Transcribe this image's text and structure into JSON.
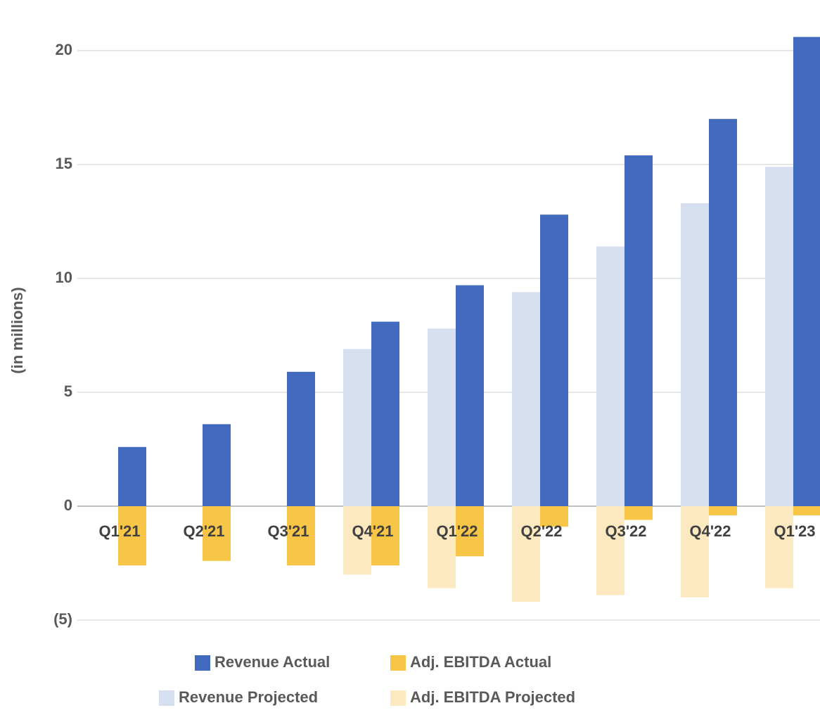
{
  "chart_data": {
    "type": "bar",
    "y_label": "(in millions)",
    "categories": [
      "Q1'21",
      "Q2'21",
      "Q3'21",
      "Q4'21",
      "Q1'22",
      "Q2'22",
      "Q3'22",
      "Q4'22",
      "Q1'23"
    ],
    "series": [
      {
        "name": "Revenue Actual",
        "color": "#4169be",
        "values": [
          2.6,
          3.6,
          5.9,
          8.1,
          9.7,
          12.8,
          15.4,
          17.0,
          20.6
        ]
      },
      {
        "name": "Adj. EBITDA Actual",
        "color": "#f8c646",
        "values": [
          -2.6,
          -2.4,
          -2.6,
          -2.6,
          -2.2,
          -0.9,
          -0.6,
          -0.4,
          -0.4
        ]
      },
      {
        "name": "Revenue Projected",
        "color": "#d6dff0",
        "values": [
          null,
          null,
          null,
          6.9,
          7.8,
          9.4,
          11.4,
          13.3,
          14.9
        ]
      },
      {
        "name": "Adj. EBITDA Projected",
        "color": "#fde9bf",
        "values": [
          null,
          null,
          null,
          -3.0,
          -3.6,
          -4.2,
          -3.9,
          -4.0,
          -3.6
        ]
      }
    ],
    "ylim": [
      -5,
      22
    ],
    "yticks": [
      {
        "value": -5,
        "label": "(5)"
      },
      0,
      5,
      10,
      15,
      20
    ],
    "grid": true
  }
}
